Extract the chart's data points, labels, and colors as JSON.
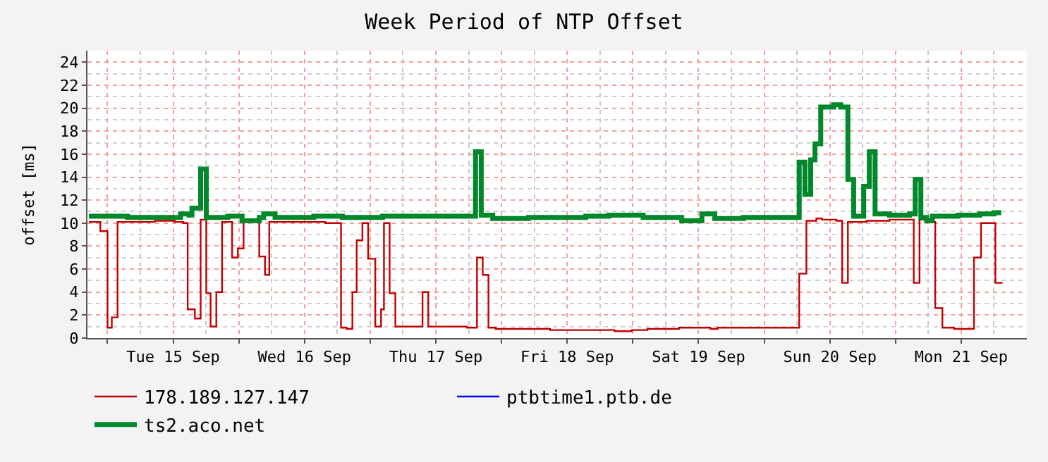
{
  "chart_data": {
    "type": "step",
    "title": "Week Period of NTP Offset",
    "ylabel": "offset [ms]",
    "xlim": [
      "--09-14T20:20",
      "--09-22T00:00"
    ],
    "xticks": [
      {
        "value": "--09-15T00:00",
        "label": null
      },
      {
        "value": "--09-15T12:00",
        "label": "Tue 15 Sep"
      },
      {
        "value": "--09-16T00:00",
        "label": null
      },
      {
        "value": "--09-16T12:00",
        "label": "Wed 16 Sep"
      },
      {
        "value": "--09-17T00:00",
        "label": null
      },
      {
        "value": "--09-17T12:00",
        "label": "Thu 17 Sep"
      },
      {
        "value": "--09-18T00:00",
        "label": null
      },
      {
        "value": "--09-18T12:00",
        "label": "Fri 18 Sep"
      },
      {
        "value": "--09-19T00:00",
        "label": null
      },
      {
        "value": "--09-19T12:00",
        "label": "Sat 19 Sep"
      },
      {
        "value": "--09-20T00:00",
        "label": null
      },
      {
        "value": "--09-20T12:00",
        "label": "Sun 20 Sep"
      },
      {
        "value": "--09-21T00:00",
        "label": null
      },
      {
        "value": "--09-21T12:00",
        "label": "Mon 21 Sep"
      }
    ],
    "ylim": [
      0,
      25
    ],
    "yticks": [
      0,
      2,
      4,
      6,
      8,
      10,
      12,
      14,
      16,
      18,
      20,
      22,
      24
    ],
    "grid": true,
    "legend": "bottom",
    "marker": "none",
    "line_style": "solid",
    "series": [
      {
        "name": "178.189.127.147",
        "color": "#c00000",
        "x": [
          "--09-14T20:36",
          "--09-14T22:41",
          "--09-15T00:00",
          "--09-15T00:47",
          "--09-15T01:50",
          "--09-15T08:38",
          "--09-15T12:18",
          "--09-15T13:52",
          "--09-15T14:39",
          "--09-15T15:58",
          "--09-15T17:01",
          "--09-15T18:03",
          "--09-15T18:50",
          "--09-15T19:53",
          "--09-15T20:56",
          "--09-15T22:46",
          "--09-15T23:49",
          "--09-16T00:52",
          "--09-16T03:44",
          "--09-16T04:47",
          "--09-16T05:34",
          "--09-16T15:47",
          "--09-16T18:40",
          "--09-16T19:42",
          "--09-16T20:45",
          "--09-16T21:32",
          "--09-16T22:35",
          "--09-16T23:38",
          "--09-17T00:56",
          "--09-17T01:59",
          "--09-17T02:31",
          "--09-17T03:33",
          "--09-17T04:36",
          "--09-17T09:34",
          "--09-17T10:37",
          "--09-17T17:41",
          "--09-17T19:31",
          "--09-17T20:34",
          "--09-17T21:37",
          "--09-17T22:55",
          "--09-18T08:52",
          "--09-18T20:38",
          "--09-18T23:47",
          "--09-19T02:40",
          "--09-19T08:25",
          "--09-19T14:11",
          "--09-19T15:29",
          "--09-20T06:24",
          "--09-20T07:43",
          "--09-20T09:32",
          "--09-20T10:35",
          "--09-20T13:12",
          "--09-20T14:15",
          "--09-20T15:18",
          "--09-20T18:42",
          "--09-20T22:53",
          "--09-21T03:20",
          "--09-21T04:23",
          "--09-21T06:13",
          "--09-21T07:16",
          "--09-21T08:34",
          "--09-21T10:40",
          "--09-21T14:20",
          "--09-21T15:38",
          "--09-21T18:15",
          "--09-21T19:34"
        ],
        "values": [
          10.1,
          9.3,
          0.9,
          1.8,
          10.1,
          10.2,
          10.1,
          10.0,
          2.5,
          1.7,
          10.3,
          3.9,
          1.0,
          4.0,
          10.1,
          7.0,
          7.8,
          10.1,
          7.1,
          5.5,
          10.1,
          10.0,
          0.9,
          0.8,
          4.0,
          8.5,
          10.0,
          6.9,
          1.0,
          2.5,
          10.0,
          3.9,
          1.0,
          4.0,
          1.0,
          0.9,
          7.0,
          5.5,
          0.9,
          0.8,
          0.7,
          0.6,
          0.7,
          0.8,
          0.9,
          0.8,
          0.9,
          5.6,
          10.2,
          10.4,
          10.3,
          10.2,
          4.8,
          10.1,
          10.2,
          10.3,
          4.8,
          10.3,
          10.1,
          2.6,
          0.9,
          0.8,
          7.0,
          10.0,
          4.8,
          4.8
        ]
      },
      {
        "name": "ptbtime1.ptb.de",
        "color": "#0000ff"
      },
      {
        "name": "ts2.aco.net",
        "color": "#00882a",
        "x": [
          "--09-14T20:36",
          "--09-15T03:40",
          "--09-15T13:21",
          "--09-15T14:55",
          "--09-15T15:26",
          "--09-15T17:01",
          "--09-15T18:03",
          "--09-15T21:59",
          "--09-16T00:36",
          "--09-16T03:44",
          "--09-16T04:32",
          "--09-16T06:37",
          "--09-16T13:41",
          "--09-16T18:55",
          "--09-17T02:15",
          "--09-17T19:15",
          "--09-17T20:18",
          "--09-17T22:24",
          "--09-18T04:56",
          "--09-18T15:24",
          "--09-18T19:36",
          "--09-19T01:53",
          "--09-19T08:56",
          "--09-19T12:37",
          "--09-19T14:58",
          "--09-19T20:11",
          "--09-20T06:24",
          "--09-20T07:27",
          "--09-20T08:30",
          "--09-20T09:17",
          "--09-20T10:20",
          "--09-20T12:41",
          "--09-20T13:59",
          "--09-20T15:18",
          "--09-20T16:21",
          "--09-20T18:11",
          "--09-20T19:13",
          "--09-20T20:16",
          "--09-20T22:53",
          "--09-21T02:33",
          "--09-21T03:36",
          "--09-21T04:38",
          "--09-21T05:41",
          "--09-21T06:44",
          "--09-21T11:27",
          "--09-21T15:23",
          "--09-21T17:59",
          "--09-21T19:18"
        ],
        "values": [
          10.6,
          10.5,
          10.8,
          10.7,
          11.3,
          14.7,
          10.5,
          10.6,
          10.2,
          10.5,
          10.8,
          10.5,
          10.6,
          10.5,
          10.6,
          16.2,
          10.7,
          10.4,
          10.5,
          10.6,
          10.7,
          10.5,
          10.2,
          10.8,
          10.4,
          10.5,
          15.3,
          12.5,
          15.5,
          16.9,
          20.1,
          20.3,
          20.1,
          13.8,
          10.6,
          13.2,
          16.2,
          10.8,
          10.7,
          10.8,
          13.8,
          10.5,
          10.2,
          10.6,
          10.7,
          10.8,
          10.9,
          10.9
        ]
      }
    ]
  }
}
